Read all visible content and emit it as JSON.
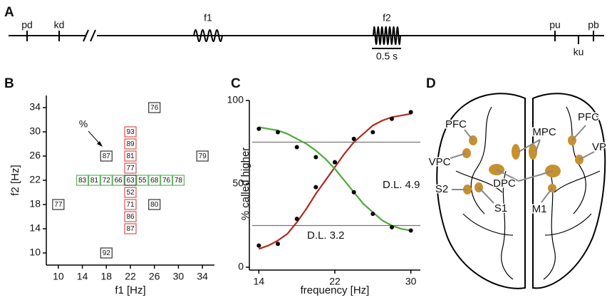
{
  "panel_a": {
    "label": "A",
    "events": [
      "pd",
      "kd",
      "f1",
      "f2",
      "pu",
      "ku",
      "pb"
    ],
    "scale_bar": "0.5 s"
  },
  "chart_data": [
    {
      "type": "scatter",
      "panel": "B",
      "xlabel": "f1 [Hz]",
      "ylabel": "f2 [Hz]",
      "xlim": [
        8,
        36
      ],
      "ylim": [
        8,
        36
      ],
      "xticks": [
        10,
        14,
        18,
        22,
        26,
        30,
        34
      ],
      "yticks": [
        10,
        14,
        18,
        22,
        26,
        30,
        34
      ],
      "series": [
        {
          "color": "#333333",
          "x": [
            26,
            18,
            34,
            10,
            26,
            18,
            22
          ],
          "y": [
            34,
            26,
            26,
            18,
            18,
            10,
            22
          ],
          "values": [
            76,
            87,
            79,
            77,
            80,
            92,
            63
          ]
        },
        {
          "color": "#d9534f",
          "x": [
            22,
            22,
            22,
            22,
            22,
            22,
            22,
            22
          ],
          "y": [
            30,
            28,
            26,
            24,
            20,
            18,
            16,
            14
          ],
          "values": [
            93,
            89,
            81,
            77,
            52,
            71,
            86,
            87
          ]
        },
        {
          "color": "#5cb85c",
          "x": [
            14,
            16,
            18,
            20,
            24,
            26,
            28,
            30
          ],
          "y": [
            22,
            22,
            22,
            22,
            22,
            22,
            22,
            22
          ],
          "values": [
            83,
            81,
            72,
            66,
            55,
            68,
            76,
            78
          ]
        }
      ],
      "annotations": [
        {
          "text": "%"
        }
      ]
    },
    {
      "type": "line",
      "panel": "C",
      "xlabel": "frequency [Hz]",
      "ylabel": "% called higher",
      "xlim": [
        13,
        31
      ],
      "ylim": [
        0,
        100
      ],
      "xticks": [
        14,
        22,
        30
      ],
      "yticks": [
        0,
        50,
        100
      ],
      "hlines": [
        75,
        25
      ],
      "series": [
        {
          "color": "#000000",
          "marker": "dot",
          "x": [
            14,
            16,
            18,
            20,
            22,
            24,
            26,
            28,
            30
          ],
          "values": [
            13,
            14,
            29,
            48,
            63,
            77,
            81,
            89,
            93
          ]
        },
        {
          "color": "#000000",
          "marker": "dot",
          "x": [
            14,
            16,
            18,
            20,
            22,
            24,
            26,
            28,
            30
          ],
          "values": [
            83,
            81,
            72,
            66,
            63,
            45,
            32,
            24,
            22
          ]
        },
        {
          "color": "#b22a1e",
          "marker": "line",
          "x": [
            14,
            15,
            16,
            17,
            18,
            19,
            20,
            21,
            22,
            23,
            24,
            25,
            26,
            27,
            28,
            29,
            30
          ],
          "values": [
            11,
            13,
            16,
            20,
            27,
            35,
            44,
            52,
            60,
            68,
            75,
            80,
            85,
            88,
            90,
            91,
            92
          ]
        },
        {
          "color": "#4caa3a",
          "marker": "line",
          "x": [
            14,
            15,
            16,
            17,
            18,
            19,
            20,
            21,
            22,
            23,
            24,
            25,
            26,
            27,
            28,
            29,
            30
          ],
          "values": [
            84,
            83,
            82,
            80,
            77,
            74,
            70,
            65,
            59,
            52,
            45,
            38,
            33,
            28,
            25,
            23,
            22
          ]
        }
      ],
      "annotations": [
        {
          "text": "D.L. 4.9",
          "color": "#4caa3a"
        },
        {
          "text": "D.L. 3.2",
          "color": "#b22a1e"
        }
      ]
    }
  ],
  "panel_d": {
    "label": "D",
    "areas": [
      "PFC",
      "MPC",
      "PFC",
      "VPC",
      "VP",
      "DPC",
      "S2",
      "S1",
      "M1"
    ]
  }
}
